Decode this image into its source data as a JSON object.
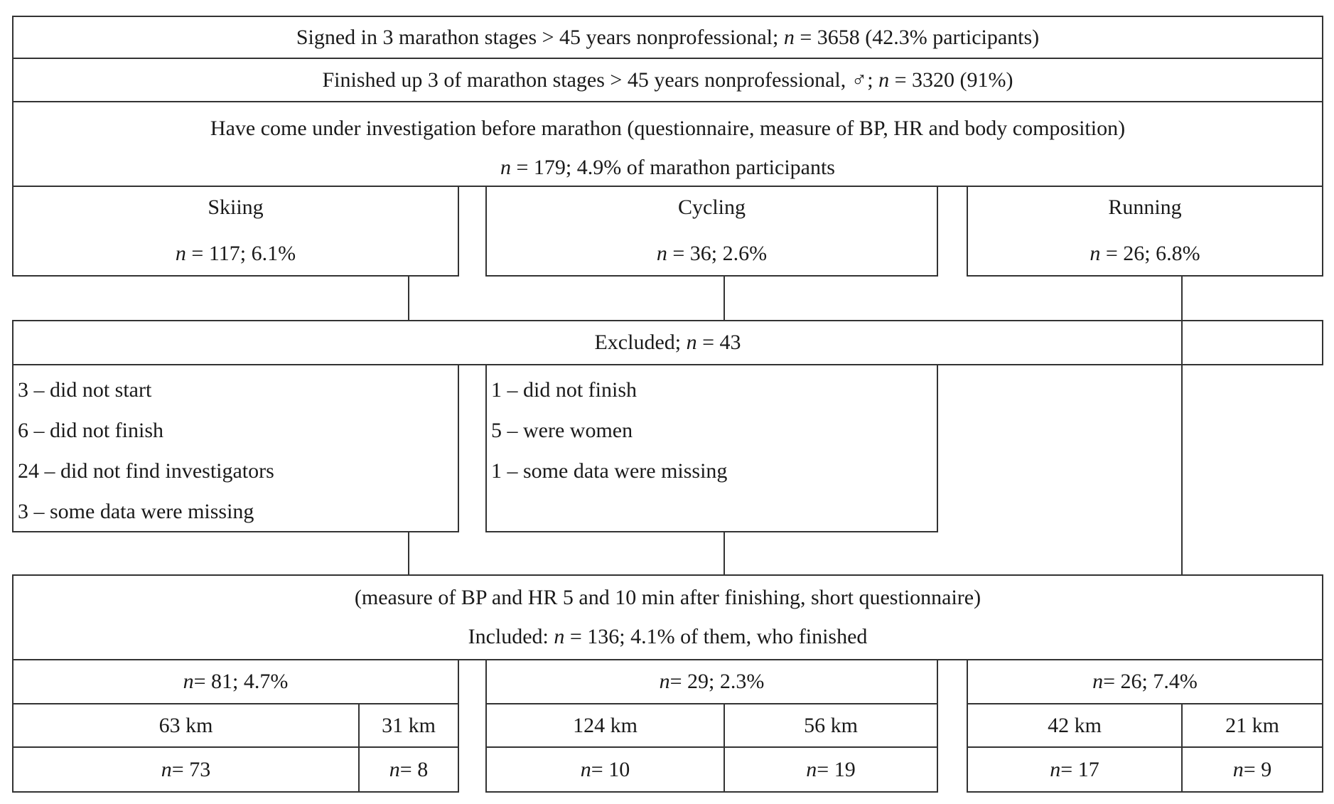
{
  "diagram": {
    "colors": {
      "border": "#333333",
      "text": "#1a1a1a",
      "background": "#ffffff"
    },
    "signed": [
      {
        "t": "Signed in 3 marathon stages > 45 years nonprofessional; ",
        "i": false
      },
      {
        "t": "n",
        "i": true
      },
      {
        "t": " = 3658 (42.3% participants)",
        "i": false
      }
    ],
    "finished": [
      {
        "t": "Finished up 3 of marathon stages > 45 years nonprofessional, ♂; ",
        "i": false
      },
      {
        "t": "n",
        "i": true
      },
      {
        "t": " = 3320 (91%)",
        "i": false
      }
    ],
    "investigation": {
      "line1": "Have come under investigation before marathon (questionnaire, measure of BP, HR and body composition)",
      "line2": [
        {
          "t": "n",
          "i": true
        },
        {
          "t": " = 179; 4.9% of marathon participants",
          "i": false
        }
      ]
    },
    "sports": [
      {
        "name": "Skiing",
        "stats": [
          {
            "t": "n",
            "i": true
          },
          {
            "t": " = 117; 6.1%",
            "i": false
          }
        ]
      },
      {
        "name": "Cycling",
        "stats": [
          {
            "t": "n",
            "i": true
          },
          {
            "t": " = 36; 2.6%",
            "i": false
          }
        ]
      },
      {
        "name": "Running",
        "stats": [
          {
            "t": "n",
            "i": true
          },
          {
            "t": " = 26; 6.8%",
            "i": false
          }
        ]
      }
    ],
    "excluded": {
      "title": [
        {
          "t": "Excluded; ",
          "i": false
        },
        {
          "t": "n",
          "i": true
        },
        {
          "t": " = 43",
          "i": false
        }
      ],
      "skiing_reasons": [
        "3 – did not start",
        "6 – did not finish",
        "24 – did not find investigators",
        "3 – some data were missing"
      ],
      "cycling_reasons": [
        "1 – did not finish",
        "5 – were women",
        "1 – some data were missing"
      ]
    },
    "included": {
      "line1": "(measure of BP and HR 5 and 10 min after finishing, short questionnaire)",
      "line2": [
        {
          "t": "Included: ",
          "i": false
        },
        {
          "t": "n",
          "i": true
        },
        {
          "t": " = 136; 4.1% of them, who finished",
          "i": false
        }
      ]
    },
    "groups": [
      {
        "total": [
          {
            "t": "n",
            "i": true
          },
          {
            "t": " = 81; 4.7%",
            "i": false
          }
        ],
        "cells": [
          {
            "km": "63 km",
            "count": [
              {
                "t": "n",
                "i": true
              },
              {
                "t": " = 73",
                "i": false
              }
            ]
          },
          {
            "km": "31 km",
            "count": [
              {
                "t": "n",
                "i": true
              },
              {
                "t": " = 8",
                "i": false
              }
            ]
          }
        ]
      },
      {
        "total": [
          {
            "t": "n",
            "i": true
          },
          {
            "t": " = 29; 2.3%",
            "i": false
          }
        ],
        "cells": [
          {
            "km": "124 km",
            "count": [
              {
                "t": "n",
                "i": true
              },
              {
                "t": " = 10",
                "i": false
              }
            ]
          },
          {
            "km": "56 km",
            "count": [
              {
                "t": "n",
                "i": true
              },
              {
                "t": " = 19",
                "i": false
              }
            ]
          }
        ]
      },
      {
        "total": [
          {
            "t": "n",
            "i": true
          },
          {
            "t": " = 26; 7.4%",
            "i": false
          }
        ],
        "cells": [
          {
            "km": "42 km",
            "count": [
              {
                "t": "n",
                "i": true
              },
              {
                "t": " = 17",
                "i": false
              }
            ]
          },
          {
            "km": "21 km",
            "count": [
              {
                "t": "n",
                "i": true
              },
              {
                "t": " = 9",
                "i": false
              }
            ]
          }
        ]
      }
    ]
  }
}
